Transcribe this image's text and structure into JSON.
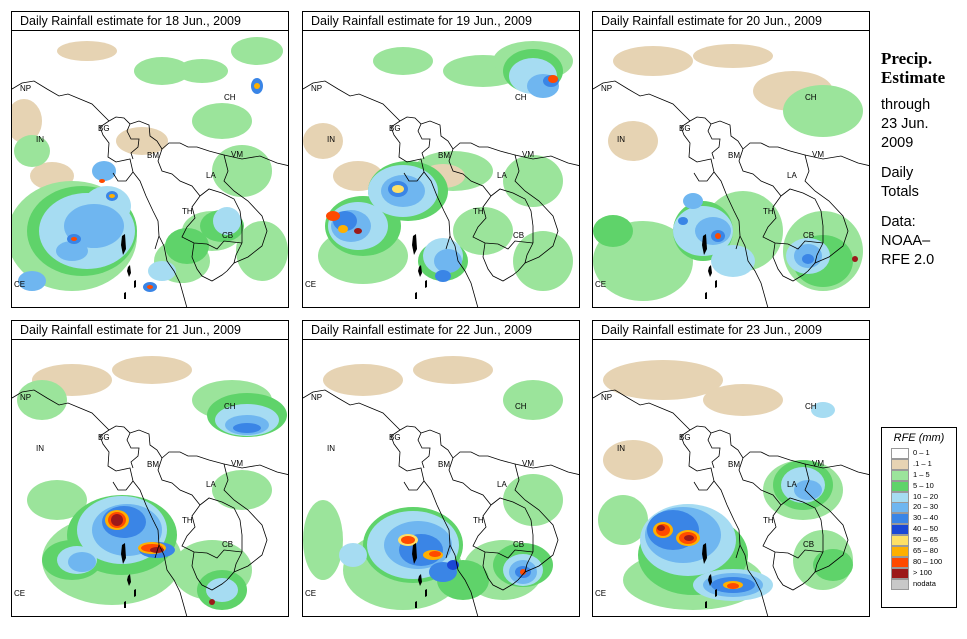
{
  "panels": [
    {
      "title": "Daily Rainfall estimate for  18 Jun., 2009"
    },
    {
      "title": "Daily Rainfall estimate for  19 Jun., 2009"
    },
    {
      "title": "Daily Rainfall estimate for  20 Jun., 2009"
    },
    {
      "title": "Daily Rainfall estimate for  21 Jun., 2009"
    },
    {
      "title": "Daily Rainfall estimate for  22 Jun., 2009"
    },
    {
      "title": "Daily Rainfall estimate for  23 Jun., 2009"
    }
  ],
  "country_labels": {
    "np": "NP",
    "in": "IN",
    "bg": "BG",
    "bm": "BM",
    "ch": "CH",
    "vm": "VM",
    "la": "LA",
    "th": "TH",
    "cb": "CB",
    "ce": "CE"
  },
  "side": {
    "precip": "Precip.",
    "estimate": "Estimate",
    "through": "through",
    "date_line1": "23 Jun.",
    "date_line2": "2009",
    "daily": "Daily",
    "totals": "Totals",
    "data_label": "Data:",
    "source1": "NOAA–",
    "source2": "RFE 2.0"
  },
  "legend": {
    "title": "RFE (mm)",
    "items": [
      {
        "label": "0 – 1",
        "color": "#ffffff"
      },
      {
        "label": ".1 – 1",
        "color": "#e6d3b3"
      },
      {
        "label": "1 – 5",
        "color": "#9be49b"
      },
      {
        "label": "5 – 10",
        "color": "#5fd36a"
      },
      {
        "label": "10 – 20",
        "color": "#a6dcf2"
      },
      {
        "label": "20 – 30",
        "color": "#6fb6f0"
      },
      {
        "label": "30 – 40",
        "color": "#3a85e6"
      },
      {
        "label": "40 – 50",
        "color": "#1a47d6"
      },
      {
        "label": "50 – 65",
        "color": "#ffe066"
      },
      {
        "label": "65 – 80",
        "color": "#ffb000"
      },
      {
        "label": "80 – 100",
        "color": "#ff4a00"
      },
      {
        "label": "> 100",
        "color": "#9c1a1a"
      },
      {
        "label": "nodata",
        "color": "#c8c8c8"
      }
    ]
  }
}
